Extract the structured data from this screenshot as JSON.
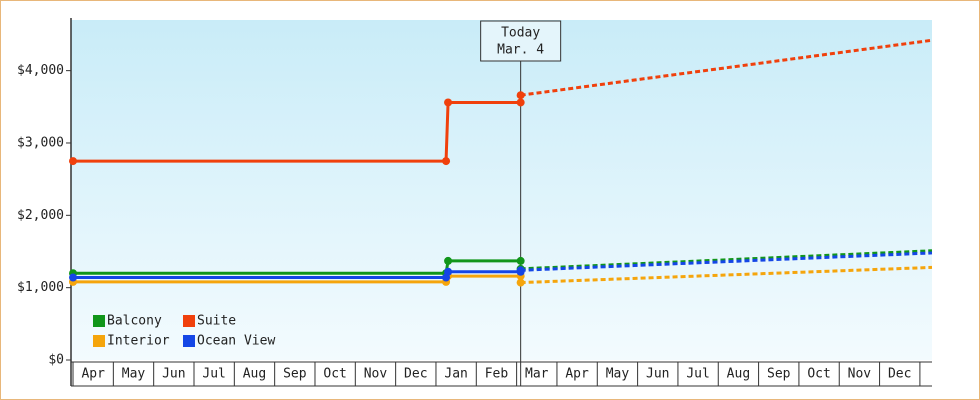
{
  "chart_data": {
    "type": "line",
    "categories": [
      "Apr",
      "May",
      "Jun",
      "Jul",
      "Aug",
      "Sep",
      "Oct",
      "Nov",
      "Dec",
      "Jan",
      "Feb",
      "Mar",
      "Apr",
      "May",
      "Jun",
      "Jul",
      "Aug",
      "Sep",
      "Oct",
      "Nov",
      "Dec"
    ],
    "xlim": [
      -0.05,
      21.3
    ],
    "ylim": [
      0,
      4700
    ],
    "yticks": [
      {
        "value": 0,
        "label": "$0"
      },
      {
        "value": 1000,
        "label": "$1,000"
      },
      {
        "value": 2000,
        "label": "$2,000"
      },
      {
        "value": 3000,
        "label": "$3,000"
      },
      {
        "value": 4000,
        "label": "$4,000"
      }
    ],
    "annotation": {
      "lines": [
        "Today",
        "Mar. 4"
      ],
      "x": 11.1
    },
    "series": [
      {
        "name": "Balcony",
        "color": "#11961a",
        "x": [
          0,
          9.25,
          9.3,
          11.1
        ],
        "values": [
          1200,
          1200,
          1370,
          1370
        ],
        "forecast_x": [
          11.1,
          21.3
        ],
        "forecast_values": [
          1260,
          1510
        ]
      },
      {
        "name": "Suite",
        "color": "#f0400c",
        "x": [
          0,
          9.25,
          9.3,
          11.1
        ],
        "values": [
          2750,
          2750,
          3560,
          3560
        ],
        "forecast_x": [
          11.1,
          21.3
        ],
        "forecast_values": [
          3660,
          4420
        ]
      },
      {
        "name": "Interior",
        "color": "#f5a50c",
        "x": [
          0,
          9.25,
          9.3,
          11.1
        ],
        "values": [
          1080,
          1080,
          1160,
          1160
        ],
        "forecast_x": [
          11.1,
          21.3
        ],
        "forecast_values": [
          1070,
          1280
        ]
      },
      {
        "name": "Ocean View",
        "color": "#1446e6",
        "x": [
          0,
          9.25,
          9.3,
          11.1
        ],
        "values": [
          1140,
          1140,
          1220,
          1220
        ],
        "forecast_x": [
          11.1,
          21.3
        ],
        "forecast_values": [
          1240,
          1480
        ]
      }
    ]
  }
}
